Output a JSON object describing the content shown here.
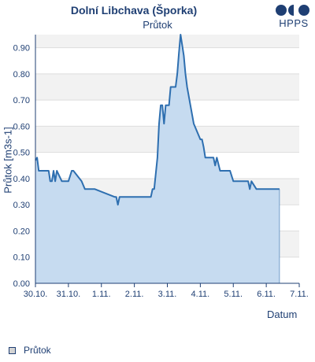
{
  "header": {
    "title": "Dolní Libchava (Šporka)",
    "subtitle": "Průtok",
    "logo_text": "HPPS"
  },
  "colors": {
    "line": "#2e6fb0",
    "fill": "#c6dbf0",
    "axis": "#1f3f73",
    "band": "#f2f2f2",
    "grid": "#dddddd"
  },
  "chart_data": {
    "type": "area",
    "title": "Dolní Libchava (Šporka)",
    "subtitle": "Průtok",
    "xlabel": "Datum",
    "ylabel": "Průtok [m3s-1]",
    "x_tick_labels": [
      "30.10.",
      "31.10.",
      "1.11.",
      "2.11.",
      "3.11.",
      "4.11.",
      "5.11.",
      "6.11.",
      "7.11."
    ],
    "ylim": [
      0,
      0.95
    ],
    "y_ticks": [
      0.0,
      0.1,
      0.2,
      0.3,
      0.4,
      0.5,
      0.6,
      0.7,
      0.8,
      0.9
    ],
    "y_tick_labels": [
      "0.00",
      "0.10",
      "0.20",
      "0.30",
      "0.40",
      "0.50",
      "0.60",
      "0.70",
      "0.80",
      "0.90"
    ],
    "xlim_days": [
      0,
      8
    ],
    "grid": true,
    "legend_position": "bottom-left",
    "series": [
      {
        "name": "Průtok",
        "x_days": [
          0,
          0.05,
          0.1,
          0.4,
          0.45,
          0.5,
          0.55,
          0.6,
          0.65,
          0.8,
          1.0,
          1.1,
          1.15,
          1.4,
          1.5,
          1.8,
          2.4,
          2.45,
          2.5,
          2.55,
          2.6,
          3.5,
          3.55,
          3.6,
          3.7,
          3.75,
          3.8,
          3.85,
          3.9,
          3.95,
          4.0,
          4.05,
          4.1,
          4.25,
          4.3,
          4.35,
          4.4,
          4.5,
          4.55,
          4.6,
          4.7,
          4.8,
          5.0,
          5.05,
          5.1,
          5.15,
          5.2,
          5.3,
          5.4,
          5.45,
          5.5,
          5.6,
          5.8,
          5.9,
          6.0,
          6.3,
          6.45,
          6.5,
          6.55,
          6.7,
          7.4
        ],
        "values": [
          0.47,
          0.48,
          0.43,
          0.43,
          0.39,
          0.39,
          0.43,
          0.39,
          0.43,
          0.39,
          0.39,
          0.43,
          0.43,
          0.39,
          0.36,
          0.36,
          0.33,
          0.33,
          0.3,
          0.33,
          0.33,
          0.33,
          0.36,
          0.36,
          0.48,
          0.61,
          0.68,
          0.68,
          0.61,
          0.68,
          0.68,
          0.68,
          0.75,
          0.75,
          0.8,
          0.88,
          0.95,
          0.87,
          0.8,
          0.75,
          0.68,
          0.61,
          0.55,
          0.55,
          0.52,
          0.48,
          0.48,
          0.48,
          0.48,
          0.45,
          0.48,
          0.43,
          0.43,
          0.43,
          0.39,
          0.39,
          0.39,
          0.36,
          0.39,
          0.36,
          0.36
        ]
      }
    ]
  },
  "legend": {
    "label": "Průtok"
  }
}
